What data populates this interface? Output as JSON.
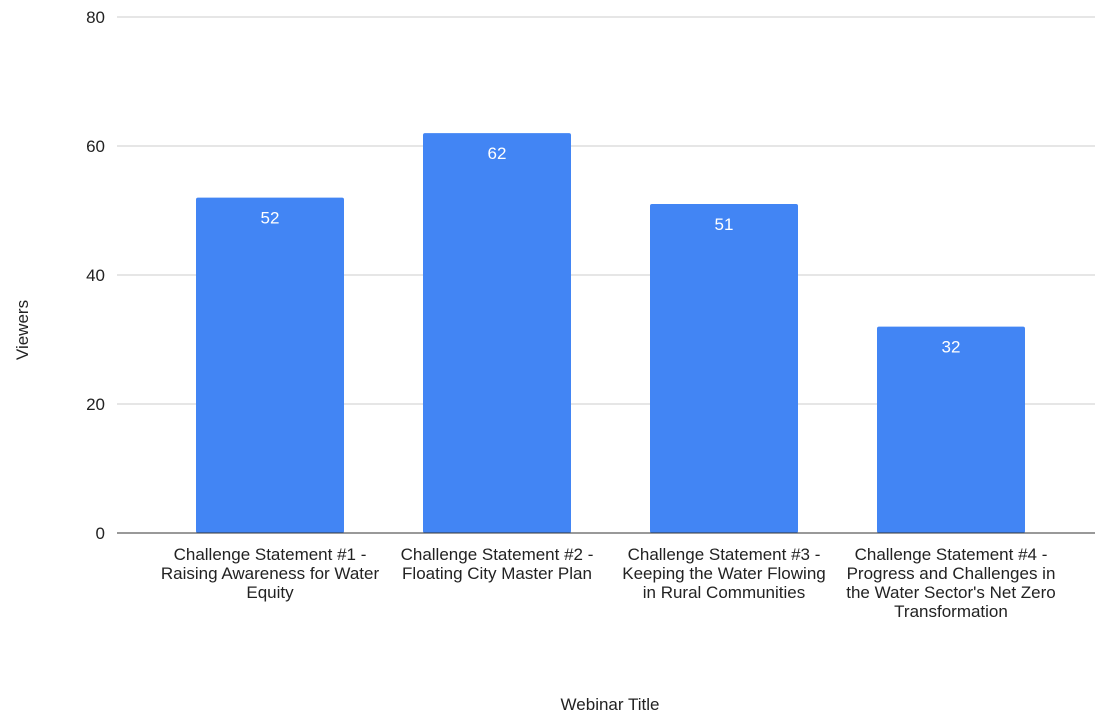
{
  "chart_data": {
    "type": "bar",
    "x_label": "Webinar Title",
    "y_label": "Viewers",
    "categories": [
      "Challenge Statement #1 - Raising Awareness for Water Equity",
      "Challenge Statement #2 - Floating City Master Plan",
      "Challenge Statement #3 - Keeping the Water Flowing in Rural Communities",
      "Challenge Statement #4 - Progress and Challenges in the Water Sector's Net Zero Transformation"
    ],
    "values": [
      52,
      62,
      51,
      32
    ],
    "color": "#4285f4",
    "ylim": [
      0,
      80
    ],
    "yticks": [
      0,
      20,
      40,
      60,
      80
    ],
    "grid": true
  }
}
